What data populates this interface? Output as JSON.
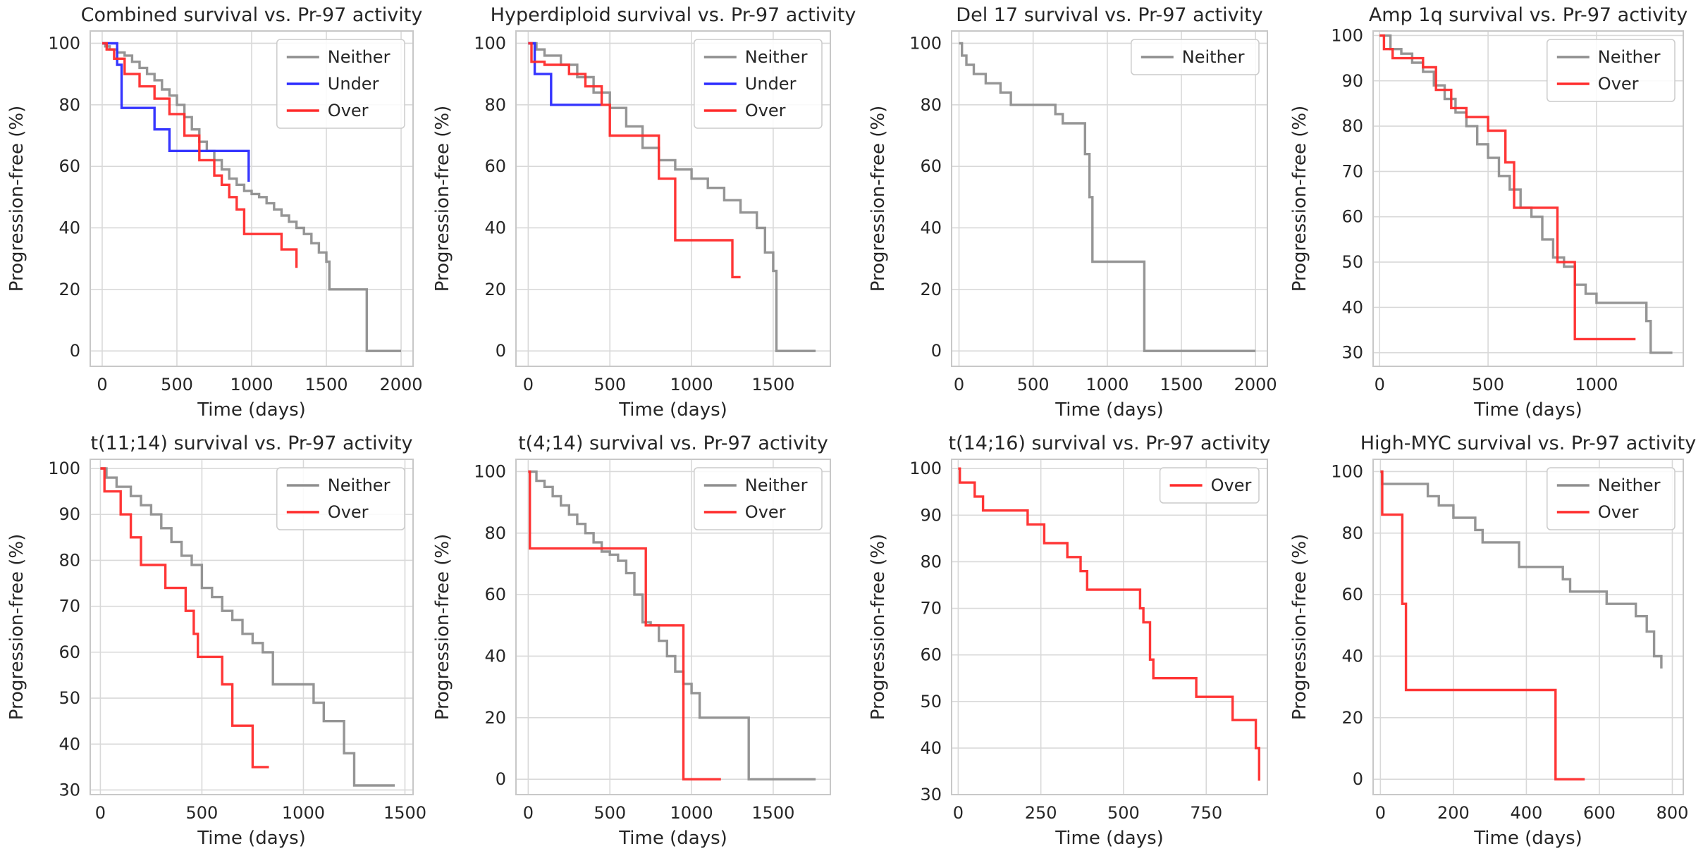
{
  "figure": {
    "rows": 2,
    "cols": 4
  },
  "colors": {
    "Neither": "#8f8f8f",
    "Under": "#2b2bff",
    "Over": "#ff2b2b",
    "grid": "#d9d9d9",
    "frame": "#c8c8c8",
    "text": "#262626"
  },
  "chart_data": [
    {
      "type": "line",
      "step": true,
      "title": "Combined survival vs. Pr-97 activity",
      "xlabel": "Time (days)",
      "ylabel": "Progression-free (%)",
      "xlim": [
        -80,
        2080
      ],
      "ylim": [
        -5,
        104
      ],
      "xticks": [
        0,
        500,
        1000,
        1500,
        2000
      ],
      "xtick_labels": [
        "0",
        "500",
        "1000",
        "1500",
        "2000"
      ],
      "yticks": [
        0,
        20,
        40,
        60,
        80,
        100
      ],
      "ytick_labels": [
        "0",
        "20",
        "40",
        "60",
        "80",
        "100"
      ],
      "legend": {
        "loc": "upper right",
        "entries": [
          "Neither",
          "Under",
          "Over"
        ]
      },
      "series": [
        {
          "name": "Neither",
          "x": [
            0,
            20,
            50,
            100,
            150,
            200,
            250,
            300,
            350,
            400,
            450,
            500,
            550,
            600,
            650,
            700,
            750,
            800,
            850,
            900,
            950,
            1000,
            1050,
            1100,
            1150,
            1200,
            1250,
            1300,
            1350,
            1400,
            1450,
            1500,
            1520,
            1750,
            1770,
            2000
          ],
          "y": [
            100,
            99,
            98,
            97,
            96,
            94,
            92,
            90,
            88,
            85,
            83,
            80,
            76,
            72,
            68,
            65,
            62,
            59,
            56,
            54,
            52,
            51,
            50,
            48,
            46,
            44,
            42,
            40,
            38,
            35,
            32,
            29,
            20,
            20,
            0,
            0
          ]
        },
        {
          "name": "Under",
          "x": [
            0,
            100,
            130,
            350,
            450,
            980
          ],
          "y": [
            100,
            93,
            79,
            72,
            65,
            55
          ]
        },
        {
          "name": "Over",
          "x": [
            0,
            30,
            80,
            150,
            250,
            350,
            450,
            550,
            650,
            750,
            800,
            850,
            900,
            950,
            1150,
            1200,
            1300
          ],
          "y": [
            100,
            98,
            95,
            90,
            86,
            82,
            77,
            70,
            62,
            57,
            54,
            50,
            46,
            38,
            38,
            33,
            27
          ]
        }
      ]
    },
    {
      "type": "line",
      "step": true,
      "title": "Hyperdiploid survival vs. Pr-97 activity",
      "xlabel": "Time (days)",
      "ylabel": "Progression-free (%)",
      "xlim": [
        -75,
        1850
      ],
      "ylim": [
        -5,
        104
      ],
      "xticks": [
        0,
        500,
        1000,
        1500
      ],
      "xtick_labels": [
        "0",
        "500",
        "1000",
        "1500"
      ],
      "yticks": [
        0,
        20,
        40,
        60,
        80,
        100
      ],
      "ytick_labels": [
        "0",
        "20",
        "40",
        "60",
        "80",
        "100"
      ],
      "legend": {
        "loc": "upper right",
        "entries": [
          "Neither",
          "Under",
          "Over"
        ]
      },
      "series": [
        {
          "name": "Neither",
          "x": [
            0,
            50,
            100,
            200,
            300,
            400,
            500,
            600,
            700,
            800,
            900,
            1000,
            1100,
            1200,
            1300,
            1400,
            1450,
            1500,
            1520,
            1760
          ],
          "y": [
            100,
            98,
            96,
            93,
            89,
            84,
            79,
            73,
            66,
            62,
            59,
            56,
            53,
            49,
            45,
            40,
            32,
            26,
            0,
            0
          ]
        },
        {
          "name": "Under",
          "x": [
            0,
            40,
            140,
            450
          ],
          "y": [
            100,
            90,
            80,
            80
          ]
        },
        {
          "name": "Over",
          "x": [
            0,
            20,
            100,
            250,
            350,
            450,
            500,
            800,
            900,
            1250,
            1300
          ],
          "y": [
            100,
            94,
            93,
            90,
            86,
            80,
            70,
            56,
            36,
            24,
            24
          ]
        }
      ]
    },
    {
      "type": "line",
      "step": true,
      "title": "Del 17 survival vs. Pr-97 activity",
      "xlabel": "Time (days)",
      "ylabel": "Progression-free (%)",
      "xlim": [
        -50,
        2080
      ],
      "ylim": [
        -5,
        104
      ],
      "xticks": [
        0,
        500,
        1000,
        1500,
        2000
      ],
      "xtick_labels": [
        "0",
        "500",
        "1000",
        "1500",
        "2000"
      ],
      "yticks": [
        0,
        20,
        40,
        60,
        80,
        100
      ],
      "ytick_labels": [
        "0",
        "20",
        "40",
        "60",
        "80",
        "100"
      ],
      "legend": {
        "loc": "upper right",
        "entries": [
          "Neither"
        ]
      },
      "series": [
        {
          "name": "Neither",
          "x": [
            0,
            20,
            50,
            100,
            180,
            280,
            350,
            650,
            700,
            850,
            880,
            900,
            1250,
            2000
          ],
          "y": [
            100,
            96,
            93,
            90,
            87,
            84,
            80,
            77,
            74,
            64,
            50,
            29,
            0,
            0
          ]
        }
      ]
    },
    {
      "type": "line",
      "step": true,
      "title": "Amp 1q survival vs. Pr-97 activity",
      "xlabel": "Time (days)",
      "ylabel": "Progression-free (%)",
      "xlim": [
        -30,
        1400
      ],
      "ylim": [
        27,
        101
      ],
      "xticks": [
        0,
        500,
        1000
      ],
      "xtick_labels": [
        "0",
        "500",
        "1000"
      ],
      "yticks": [
        30,
        40,
        50,
        60,
        70,
        80,
        90,
        100
      ],
      "ytick_labels": [
        "30",
        "40",
        "50",
        "60",
        "70",
        "80",
        "90",
        "100"
      ],
      "legend": {
        "loc": "upper right",
        "entries": [
          "Neither",
          "Over"
        ]
      },
      "series": [
        {
          "name": "Neither",
          "x": [
            0,
            50,
            100,
            150,
            200,
            250,
            300,
            350,
            400,
            450,
            500,
            550,
            600,
            650,
            700,
            750,
            800,
            850,
            900,
            950,
            1000,
            1200,
            1230,
            1250,
            1350
          ],
          "y": [
            100,
            97,
            96,
            94,
            92,
            89,
            86,
            83,
            80,
            76,
            73,
            69,
            66,
            62,
            60,
            55,
            51,
            49,
            45,
            43,
            41,
            41,
            37,
            30,
            30
          ]
        },
        {
          "name": "Over",
          "x": [
            0,
            20,
            60,
            200,
            260,
            330,
            400,
            500,
            580,
            620,
            820,
            900,
            1180
          ],
          "y": [
            100,
            97,
            95,
            93,
            88,
            84,
            82,
            79,
            72,
            62,
            50,
            33,
            33
          ]
        }
      ]
    },
    {
      "type": "line",
      "step": true,
      "title": "t(11;14) survival vs. Pr-97 activity",
      "xlabel": "Time (days)",
      "ylabel": "Progression-free (%)",
      "xlim": [
        -50,
        1540
      ],
      "ylim": [
        29,
        102
      ],
      "xticks": [
        0,
        500,
        1000,
        1500
      ],
      "xtick_labels": [
        "0",
        "500",
        "1000",
        "1500"
      ],
      "yticks": [
        30,
        40,
        50,
        60,
        70,
        80,
        90,
        100
      ],
      "ytick_labels": [
        "30",
        "40",
        "50",
        "60",
        "70",
        "80",
        "90",
        "100"
      ],
      "legend": {
        "loc": "upper right",
        "entries": [
          "Neither",
          "Over"
        ]
      },
      "series": [
        {
          "name": "Neither",
          "x": [
            0,
            30,
            80,
            150,
            200,
            250,
            300,
            350,
            400,
            450,
            500,
            550,
            600,
            650,
            700,
            750,
            800,
            850,
            1050,
            1100,
            1200,
            1250,
            1450
          ],
          "y": [
            100,
            98,
            96,
            94,
            92,
            90,
            87,
            84,
            81,
            79,
            74,
            72,
            69,
            67,
            64,
            62,
            60,
            53,
            49,
            45,
            38,
            31,
            31
          ]
        },
        {
          "name": "Over",
          "x": [
            0,
            20,
            100,
            150,
            200,
            320,
            420,
            460,
            480,
            600,
            650,
            750,
            830
          ],
          "y": [
            100,
            95,
            90,
            85,
            79,
            74,
            69,
            64,
            59,
            53,
            44,
            35,
            35
          ]
        }
      ]
    },
    {
      "type": "line",
      "step": true,
      "title": "t(4;14) survival vs. Pr-97 activity",
      "xlabel": "Time (days)",
      "ylabel": "Progression-free (%)",
      "xlim": [
        -75,
        1850
      ],
      "ylim": [
        -5,
        104
      ],
      "xticks": [
        0,
        500,
        1000,
        1500
      ],
      "xtick_labels": [
        "0",
        "500",
        "1000",
        "1500"
      ],
      "yticks": [
        0,
        20,
        40,
        60,
        80,
        100
      ],
      "ytick_labels": [
        "0",
        "20",
        "40",
        "60",
        "80",
        "100"
      ],
      "legend": {
        "loc": "upper right",
        "entries": [
          "Neither",
          "Over"
        ]
      },
      "series": [
        {
          "name": "Neither",
          "x": [
            0,
            50,
            100,
            150,
            200,
            250,
            300,
            350,
            400,
            450,
            500,
            550,
            600,
            650,
            700,
            750,
            800,
            850,
            900,
            950,
            1000,
            1050,
            1350,
            1760
          ],
          "y": [
            100,
            97,
            95,
            92,
            89,
            86,
            83,
            80,
            77,
            74,
            73,
            71,
            67,
            60,
            51,
            50,
            45,
            40,
            35,
            31,
            28,
            20,
            0,
            0
          ]
        },
        {
          "name": "Over",
          "x": [
            0,
            10,
            720,
            950,
            1180
          ],
          "y": [
            100,
            75,
            50,
            0,
            0
          ]
        }
      ]
    },
    {
      "type": "line",
      "step": true,
      "title": "t(14;16) survival vs. Pr-97 activity",
      "xlabel": "Time (days)",
      "ylabel": "Progression-free (%)",
      "xlim": [
        -20,
        935
      ],
      "ylim": [
        30,
        102
      ],
      "xticks": [
        0,
        250,
        500,
        750
      ],
      "xtick_labels": [
        "0",
        "250",
        "500",
        "750"
      ],
      "yticks": [
        30,
        40,
        50,
        60,
        70,
        80,
        90,
        100
      ],
      "ytick_labels": [
        "30",
        "40",
        "50",
        "60",
        "70",
        "80",
        "90",
        "100"
      ],
      "legend": {
        "loc": "upper right",
        "entries": [
          "Over"
        ]
      },
      "series": [
        {
          "name": "Over",
          "x": [
            0,
            5,
            50,
            75,
            210,
            260,
            330,
            370,
            390,
            550,
            560,
            580,
            590,
            720,
            830,
            900,
            910
          ],
          "y": [
            100,
            97,
            94,
            91,
            88,
            84,
            81,
            78,
            74,
            70,
            67,
            59,
            55,
            51,
            46,
            40,
            33
          ]
        }
      ]
    },
    {
      "type": "line",
      "step": true,
      "title": "High-MYC survival vs. Pr-97 activity",
      "xlabel": "Time (days)",
      "ylabel": "Progression-free (%)",
      "xlim": [
        -20,
        830
      ],
      "ylim": [
        -5,
        104
      ],
      "xticks": [
        0,
        200,
        400,
        600,
        800
      ],
      "xtick_labels": [
        "0",
        "200",
        "400",
        "600",
        "800"
      ],
      "yticks": [
        0,
        20,
        40,
        60,
        80,
        100
      ],
      "ytick_labels": [
        "0",
        "20",
        "40",
        "60",
        "80",
        "100"
      ],
      "legend": {
        "loc": "upper right",
        "entries": [
          "Neither",
          "Over"
        ]
      },
      "series": [
        {
          "name": "Neither",
          "x": [
            0,
            5,
            130,
            160,
            200,
            260,
            280,
            380,
            500,
            520,
            620,
            700,
            730,
            750,
            770
          ],
          "y": [
            100,
            96,
            92,
            89,
            85,
            81,
            77,
            69,
            65,
            61,
            57,
            53,
            48,
            40,
            36
          ]
        },
        {
          "name": "Over",
          "x": [
            0,
            5,
            60,
            70,
            480,
            560
          ],
          "y": [
            100,
            86,
            57,
            29,
            0,
            0
          ]
        }
      ]
    }
  ]
}
